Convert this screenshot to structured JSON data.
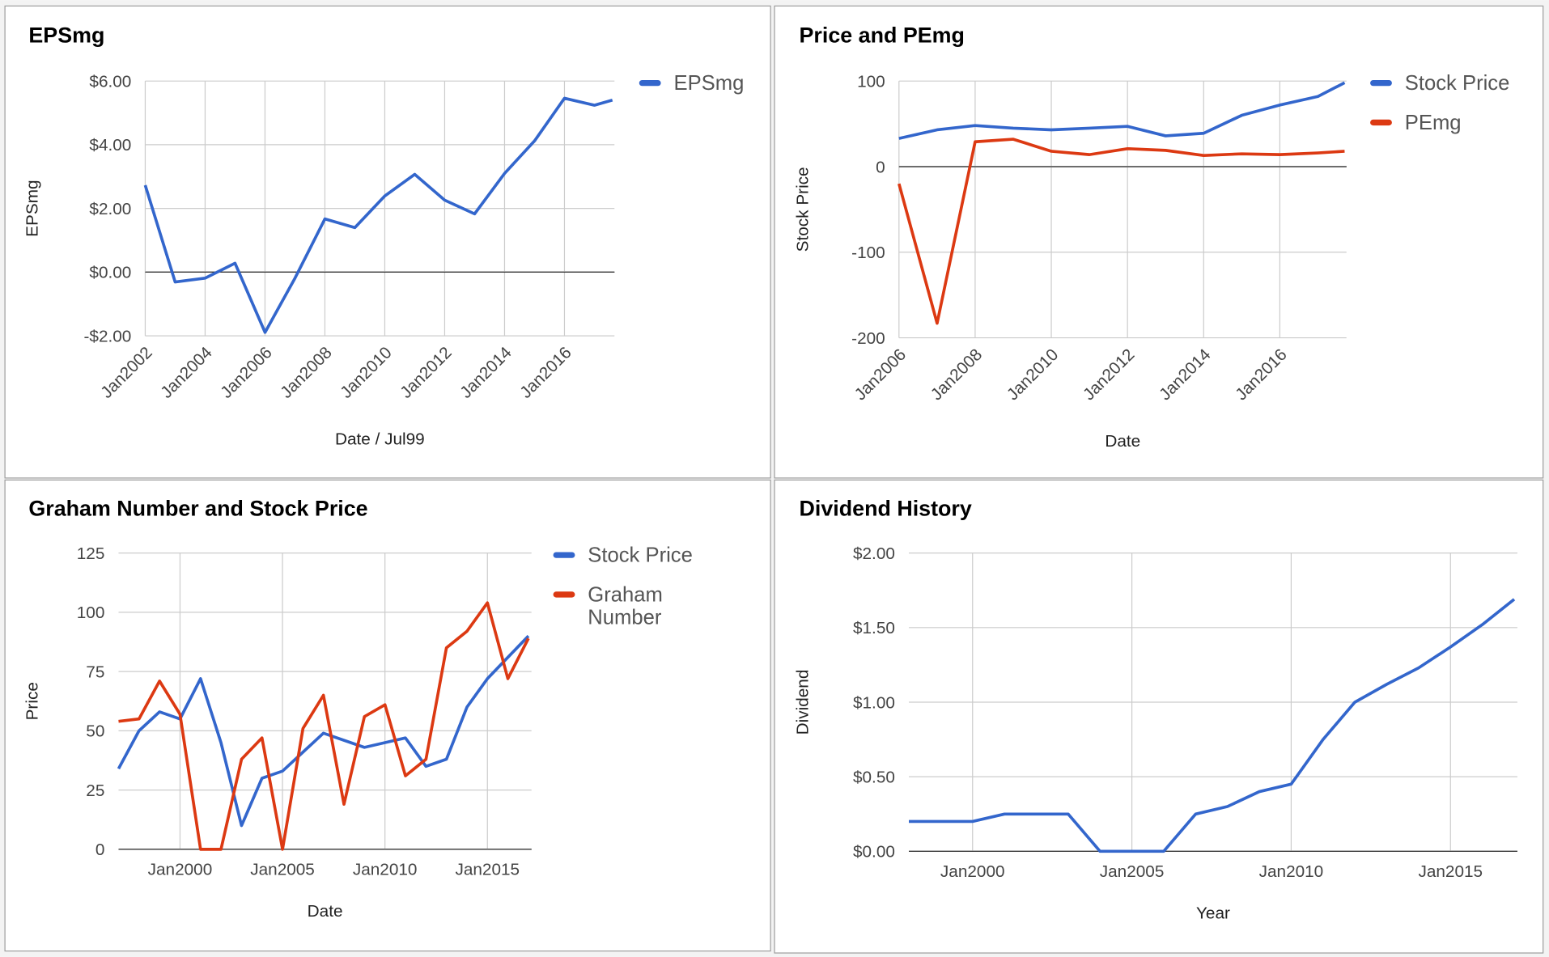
{
  "chart_data": [
    {
      "type": "line",
      "title": "EPSmg",
      "x_label": "Date / Jul99",
      "y_label": "EPSmg",
      "x": [
        2002,
        2003,
        2004,
        2005,
        2006,
        2007,
        2008,
        2009,
        2010,
        2011,
        2012,
        2013,
        2014,
        2015,
        2016,
        2017,
        2017.6
      ],
      "series": [
        {
          "name": "EPSmg",
          "color": "#3366cc",
          "values": [
            2.73,
            -0.31,
            -0.19,
            0.28,
            -1.89,
            -0.19,
            1.67,
            1.4,
            2.39,
            3.07,
            2.26,
            1.83,
            3.1,
            4.12,
            5.46,
            5.24,
            5.4
          ]
        }
      ],
      "xlim": [
        2002,
        2017.67
      ],
      "xticks": [
        {
          "value": 2002,
          "label": "Jan2002"
        },
        {
          "value": 2004,
          "label": "Jan2004"
        },
        {
          "value": 2006,
          "label": "Jan2006"
        },
        {
          "value": 2008,
          "label": "Jan2008"
        },
        {
          "value": 2010,
          "label": "Jan2010"
        },
        {
          "value": 2012,
          "label": "Jan2012"
        },
        {
          "value": 2014,
          "label": "Jan2014"
        },
        {
          "value": 2016,
          "label": "Jan2016"
        }
      ],
      "ylim": [
        -2,
        6
      ],
      "yticks": [
        {
          "value": -2,
          "label": "-$2.00"
        },
        {
          "value": 0,
          "label": "$0.00"
        },
        {
          "value": 2,
          "label": "$2.00"
        },
        {
          "value": 4,
          "label": "$4.00"
        },
        {
          "value": 6,
          "label": "$6.00"
        }
      ],
      "grid": true,
      "legend": "right"
    },
    {
      "type": "line",
      "title": "Price and PEmg",
      "x_label": "Date",
      "y_label": "Stock Price",
      "x": [
        2006,
        2007,
        2008,
        2009,
        2010,
        2011,
        2012,
        2013,
        2014,
        2015,
        2016,
        2017,
        2017.7
      ],
      "series": [
        {
          "name": "Stock Price",
          "color": "#3366cc",
          "values": [
            33,
            43,
            48,
            45,
            43,
            45,
            47,
            36,
            39,
            60,
            72,
            82,
            98
          ]
        },
        {
          "name": "PEmg",
          "color": "#dc3912",
          "values": [
            -20,
            -183,
            29,
            32,
            18,
            14,
            21,
            19,
            13,
            15,
            14,
            16,
            18
          ]
        }
      ],
      "xlim": [
        2006,
        2017.75
      ],
      "xticks": [
        {
          "value": 2006,
          "label": "Jan2006"
        },
        {
          "value": 2008,
          "label": "Jan2008"
        },
        {
          "value": 2010,
          "label": "Jan2010"
        },
        {
          "value": 2012,
          "label": "Jan2012"
        },
        {
          "value": 2014,
          "label": "Jan2014"
        },
        {
          "value": 2016,
          "label": "Jan2016"
        }
      ],
      "ylim": [
        -200,
        100
      ],
      "yticks": [
        -200,
        -100,
        0,
        100
      ],
      "grid": true,
      "legend": "right"
    },
    {
      "type": "line",
      "title": "Graham Number and Stock Price",
      "x_label": "Date",
      "y_label": "Price",
      "x": [
        1997,
        1998,
        1999,
        2000,
        2001,
        2002,
        2003,
        2004,
        2005,
        2006,
        2007,
        2008,
        2009,
        2010,
        2011,
        2012,
        2013,
        2014,
        2015,
        2016,
        2017
      ],
      "series": [
        {
          "name": "Stock Price",
          "color": "#3366cc",
          "values": [
            34,
            50,
            58,
            55,
            72,
            45,
            10,
            30,
            33,
            41,
            49,
            46,
            43,
            45,
            47,
            35,
            38,
            60,
            72,
            81,
            90
          ]
        },
        {
          "name": "Graham Number",
          "color": "#dc3912",
          "values": [
            54,
            55,
            71,
            57,
            0,
            0,
            38,
            47,
            0,
            51,
            65,
            19,
            56,
            61,
            31,
            38,
            85,
            92,
            104,
            72,
            89
          ]
        }
      ],
      "xlim": [
        1997,
        2017.15
      ],
      "xticks": [
        {
          "value": 2000,
          "label": "Jan2000"
        },
        {
          "value": 2005,
          "label": "Jan2005"
        },
        {
          "value": 2010,
          "label": "Jan2010"
        },
        {
          "value": 2015,
          "label": "Jan2015"
        }
      ],
      "ylim": [
        0,
        125
      ],
      "yticks": [
        0,
        25,
        50,
        75,
        100,
        125
      ],
      "grid": true,
      "legend": "right"
    },
    {
      "type": "line",
      "title": "Dividend History",
      "x_label": "Year",
      "y_label": "Dividend",
      "x": [
        1998,
        1999,
        2000,
        2001,
        2002,
        2003,
        2004,
        2005,
        2006,
        2007,
        2008,
        2009,
        2010,
        2011,
        2012,
        2013,
        2014,
        2015,
        2016,
        2017
      ],
      "series": [
        {
          "color": "#3366cc",
          "values": [
            0.2,
            0.2,
            0.2,
            0.25,
            0.25,
            0.25,
            0,
            0,
            0,
            0.25,
            0.3,
            0.4,
            0.45,
            0.75,
            1.0,
            1.12,
            1.23,
            1.37,
            1.52,
            1.69
          ]
        }
      ],
      "xlim": [
        1998,
        2017.1
      ],
      "xticks": [
        {
          "value": 2000,
          "label": "Jan2000"
        },
        {
          "value": 2005,
          "label": "Jan2005"
        },
        {
          "value": 2010,
          "label": "Jan2010"
        },
        {
          "value": 2015,
          "label": "Jan2015"
        }
      ],
      "ylim": [
        0,
        2
      ],
      "yticks": [
        {
          "value": 0,
          "label": "$0.00"
        },
        {
          "value": 0.5,
          "label": "$0.50"
        },
        {
          "value": 1,
          "label": "$1.00"
        },
        {
          "value": 1.5,
          "label": "$1.50"
        },
        {
          "value": 2,
          "label": "$2.00"
        }
      ],
      "grid": true,
      "legend": "none"
    }
  ]
}
